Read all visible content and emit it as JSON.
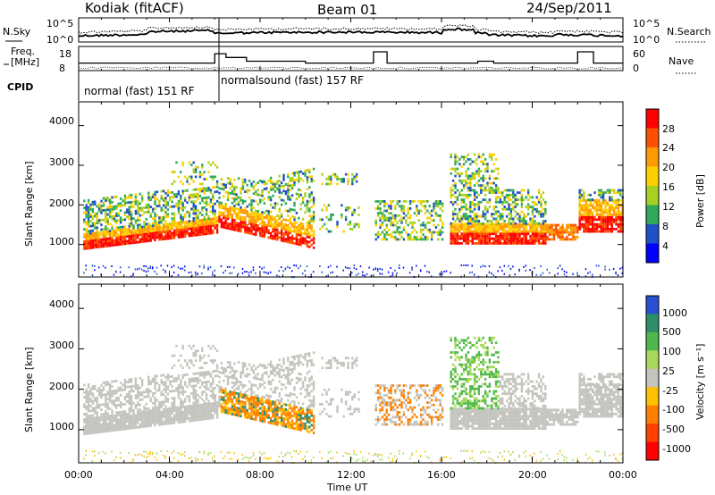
{
  "header": {
    "station": "Kodiak (fitACF)",
    "beam": "Beam 01",
    "date": "24/Sep/2011"
  },
  "top_panels": {
    "nsky_label": "N.Sky",
    "nsearch_label": "N.Search",
    "freq_label_line1": "Freq.",
    "freq_label_line2": "[MHz]",
    "nave_label": "Nave",
    "cpid_label": "CPID",
    "noise_ticks_left": [
      "10^5",
      "10^0"
    ],
    "noise_ticks_right": [
      "10^5",
      "10^0"
    ],
    "freq_ticks": [
      "18",
      "8"
    ],
    "nave_ticks": [
      "60",
      "0"
    ],
    "cpid_segments": [
      {
        "label": "normal (fast) 151 RF",
        "start_hour": 0,
        "end_hour": 6.0
      },
      {
        "label": "normalsound (fast) 157 RF",
        "start_hour": 6.0,
        "end_hour": 24
      }
    ],
    "freq_series": [
      [
        0,
        12
      ],
      [
        6.0,
        12
      ],
      [
        6.0,
        17
      ],
      [
        6.5,
        17
      ],
      [
        6.5,
        15
      ],
      [
        7.4,
        15
      ],
      [
        7.4,
        13
      ],
      [
        10.0,
        13
      ],
      [
        10.0,
        12
      ],
      [
        13.0,
        12
      ],
      [
        13.0,
        18
      ],
      [
        13.6,
        18
      ],
      [
        13.6,
        12
      ],
      [
        17.6,
        12
      ],
      [
        17.6,
        13
      ],
      [
        18.3,
        13
      ],
      [
        18.3,
        12
      ],
      [
        22.0,
        12
      ],
      [
        22.0,
        18
      ],
      [
        22.7,
        18
      ],
      [
        22.7,
        12
      ],
      [
        24,
        12
      ]
    ]
  },
  "chart_data": [
    {
      "type": "heatmap",
      "name": "power-panel",
      "ylabel": "Slant Range [km]",
      "xlabel": "",
      "x_range_hours": [
        0,
        24
      ],
      "ylim": [
        180,
        4600
      ],
      "yticks": [
        "1000",
        "2000",
        "3000",
        "4000"
      ],
      "colorbar_label": "Power [dB]",
      "colorbar_ticks": [
        "28",
        "24",
        "20",
        "16",
        "12",
        "8",
        "4"
      ],
      "colorbar_colors": [
        "#ff0000",
        "#ff5000",
        "#ff9a00",
        "#ffd000",
        "#a8d020",
        "#2eaa5a",
        "#1e50c8",
        "#0000ff"
      ]
    },
    {
      "type": "heatmap",
      "name": "velocity-panel",
      "ylabel": "Slant Range [km]",
      "xlabel": "Time UT",
      "x_range_hours": [
        0,
        24
      ],
      "ylim": [
        180,
        4600
      ],
      "yticks": [
        "1000",
        "2000",
        "3000",
        "4000"
      ],
      "xticks": [
        "00:00",
        "04:00",
        "08:00",
        "12:00",
        "16:00",
        "20:00",
        "00:00"
      ],
      "colorbar_label": "Velocity [m s⁻¹]",
      "colorbar_ticks": [
        "1000",
        "500",
        "100",
        "25",
        "-25",
        "-100",
        "-500",
        "-1000"
      ],
      "colorbar_colors": [
        "#2a4fd0",
        "#2d8f6a",
        "#4fb84c",
        "#a8d95a",
        "#c4c4be",
        "#ffc000",
        "#ff8000",
        "#ff4000",
        "#ff0000"
      ]
    }
  ]
}
